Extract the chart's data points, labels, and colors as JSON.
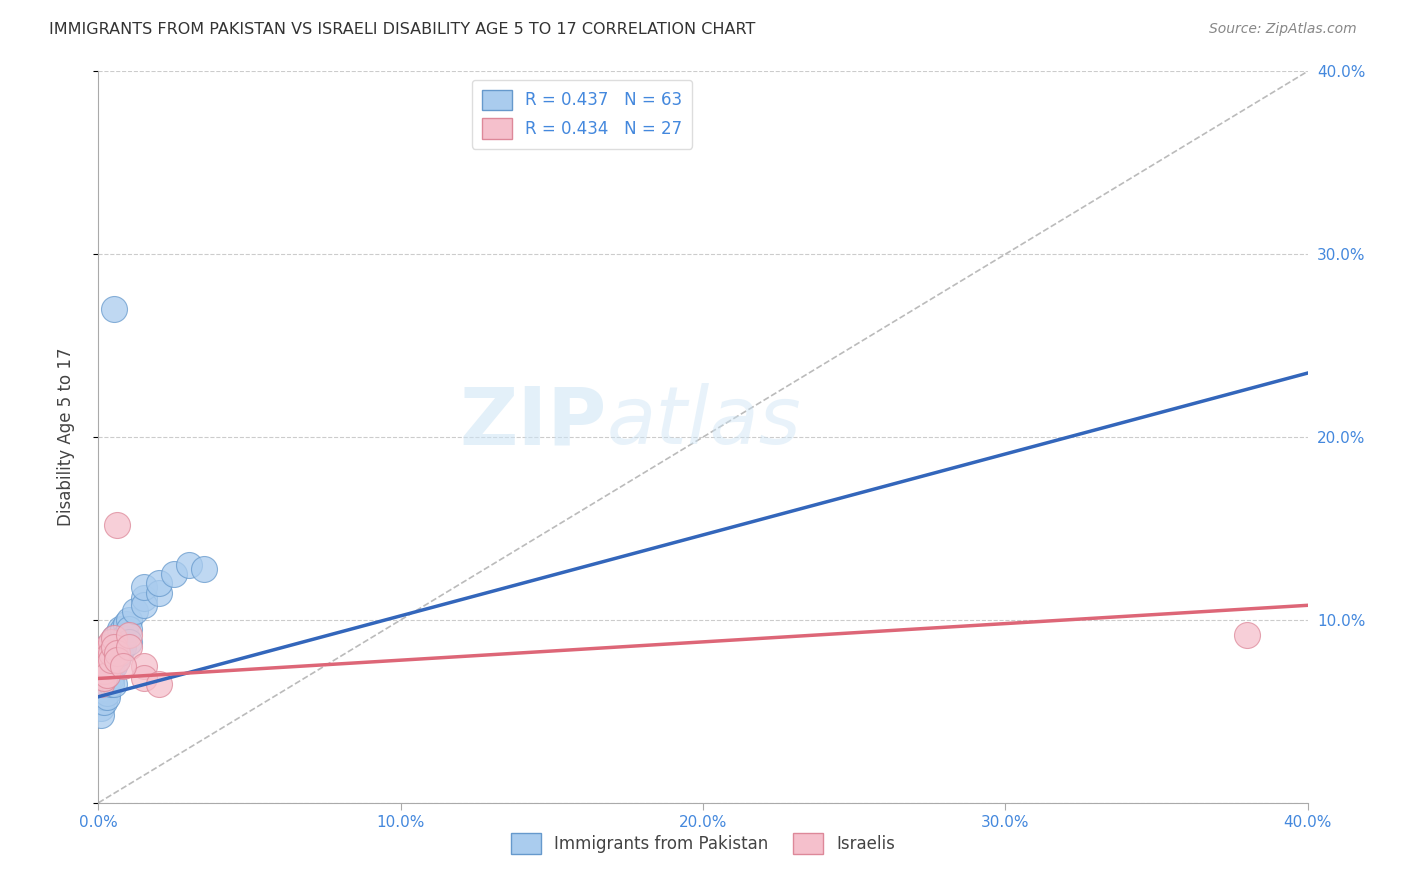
{
  "title": "IMMIGRANTS FROM PAKISTAN VS ISRAELI DISABILITY AGE 5 TO 17 CORRELATION CHART",
  "source": "Source: ZipAtlas.com",
  "ylabel": "Disability Age 5 to 17",
  "xmin": 0.0,
  "xmax": 0.4,
  "ymin": 0.0,
  "ymax": 0.4,
  "grid_color": "#cccccc",
  "background_color": "#ffffff",
  "blue_color": "#aaccee",
  "blue_edge_color": "#6699cc",
  "blue_line_color": "#3366bb",
  "pink_color": "#f5c0cc",
  "pink_edge_color": "#dd8899",
  "pink_line_color": "#dd6677",
  "r_blue": 0.437,
  "n_blue": 63,
  "r_pink": 0.434,
  "n_pink": 27,
  "legend_label_blue": "Immigrants from Pakistan",
  "legend_label_pink": "Israelis",
  "watermark_zip": "ZIP",
  "watermark_atlas": "atlas",
  "blue_scatter": [
    [
      0.001,
      0.065
    ],
    [
      0.001,
      0.062
    ],
    [
      0.001,
      0.068
    ],
    [
      0.001,
      0.058
    ],
    [
      0.001,
      0.055
    ],
    [
      0.001,
      0.06
    ],
    [
      0.001,
      0.07
    ],
    [
      0.001,
      0.052
    ],
    [
      0.001,
      0.048
    ],
    [
      0.001,
      0.072
    ],
    [
      0.001,
      0.078
    ],
    [
      0.001,
      0.075
    ],
    [
      0.002,
      0.068
    ],
    [
      0.002,
      0.065
    ],
    [
      0.002,
      0.062
    ],
    [
      0.002,
      0.058
    ],
    [
      0.002,
      0.072
    ],
    [
      0.002,
      0.075
    ],
    [
      0.002,
      0.055
    ],
    [
      0.002,
      0.08
    ],
    [
      0.003,
      0.07
    ],
    [
      0.003,
      0.065
    ],
    [
      0.003,
      0.075
    ],
    [
      0.003,
      0.08
    ],
    [
      0.003,
      0.06
    ],
    [
      0.003,
      0.085
    ],
    [
      0.003,
      0.058
    ],
    [
      0.004,
      0.072
    ],
    [
      0.004,
      0.078
    ],
    [
      0.004,
      0.082
    ],
    [
      0.004,
      0.068
    ],
    [
      0.004,
      0.065
    ],
    [
      0.004,
      0.075
    ],
    [
      0.005,
      0.08
    ],
    [
      0.005,
      0.085
    ],
    [
      0.005,
      0.075
    ],
    [
      0.005,
      0.09
    ],
    [
      0.005,
      0.065
    ],
    [
      0.006,
      0.078
    ],
    [
      0.006,
      0.085
    ],
    [
      0.006,
      0.088
    ],
    [
      0.006,
      0.092
    ],
    [
      0.007,
      0.095
    ],
    [
      0.007,
      0.088
    ],
    [
      0.007,
      0.082
    ],
    [
      0.008,
      0.09
    ],
    [
      0.008,
      0.095
    ],
    [
      0.008,
      0.085
    ],
    [
      0.009,
      0.098
    ],
    [
      0.009,
      0.092
    ],
    [
      0.01,
      0.1
    ],
    [
      0.01,
      0.095
    ],
    [
      0.01,
      0.088
    ],
    [
      0.012,
      0.105
    ],
    [
      0.015,
      0.112
    ],
    [
      0.015,
      0.108
    ],
    [
      0.015,
      0.118
    ],
    [
      0.02,
      0.115
    ],
    [
      0.02,
      0.12
    ],
    [
      0.025,
      0.125
    ],
    [
      0.03,
      0.13
    ],
    [
      0.035,
      0.128
    ],
    [
      0.005,
      0.27
    ]
  ],
  "pink_scatter": [
    [
      0.001,
      0.08
    ],
    [
      0.001,
      0.075
    ],
    [
      0.001,
      0.07
    ],
    [
      0.001,
      0.065
    ],
    [
      0.002,
      0.082
    ],
    [
      0.002,
      0.078
    ],
    [
      0.002,
      0.072
    ],
    [
      0.002,
      0.068
    ],
    [
      0.003,
      0.085
    ],
    [
      0.003,
      0.08
    ],
    [
      0.003,
      0.075
    ],
    [
      0.003,
      0.07
    ],
    [
      0.004,
      0.088
    ],
    [
      0.004,
      0.082
    ],
    [
      0.004,
      0.078
    ],
    [
      0.005,
      0.09
    ],
    [
      0.005,
      0.085
    ],
    [
      0.006,
      0.082
    ],
    [
      0.006,
      0.078
    ],
    [
      0.006,
      0.152
    ],
    [
      0.01,
      0.092
    ],
    [
      0.01,
      0.085
    ],
    [
      0.015,
      0.075
    ],
    [
      0.015,
      0.068
    ],
    [
      0.02,
      0.065
    ],
    [
      0.38,
      0.092
    ],
    [
      0.008,
      0.075
    ]
  ],
  "blue_line_x": [
    0.0,
    0.4
  ],
  "blue_line_y": [
    0.058,
    0.235
  ],
  "pink_line_x": [
    0.0,
    0.4
  ],
  "pink_line_y": [
    0.068,
    0.108
  ],
  "diag_line_x": [
    0.0,
    0.4
  ],
  "diag_line_y": [
    0.0,
    0.4
  ]
}
